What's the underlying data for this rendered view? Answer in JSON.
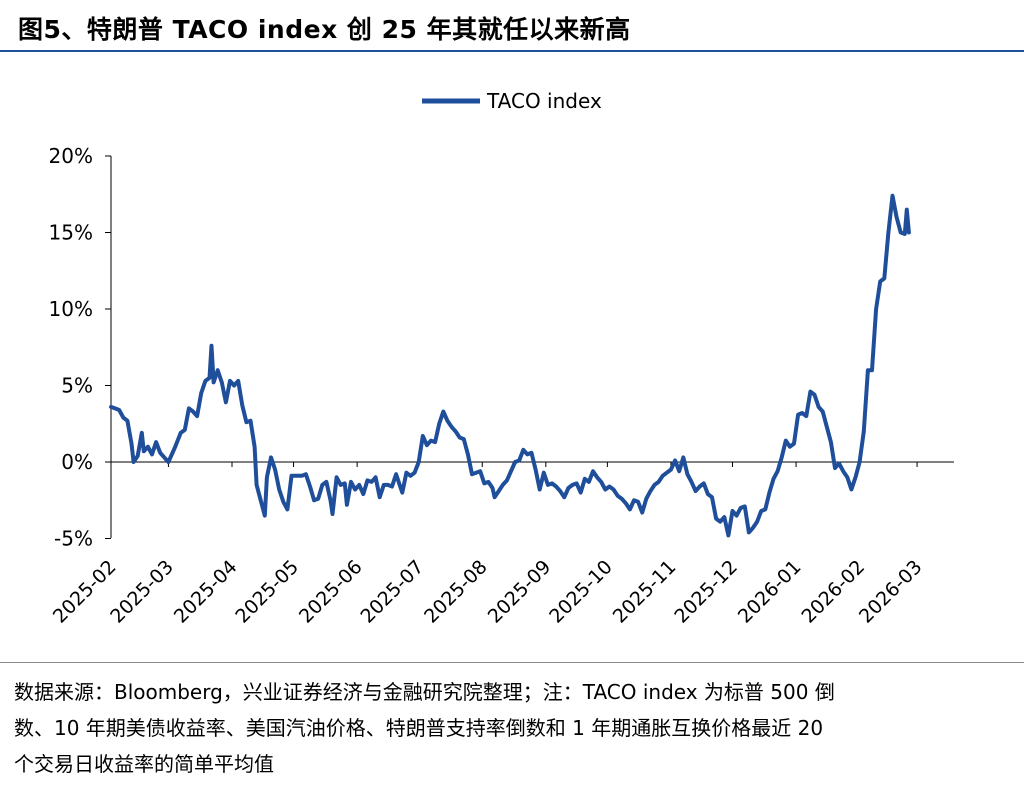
{
  "title": "图5、特朗普 TACO index 创 25 年其就任以来新高",
  "chart_data": {
    "type": "line",
    "series_name": "TACO index",
    "y_ticks": [
      "20%",
      "15%",
      "10%",
      "5%",
      "0%",
      "-5%"
    ],
    "ylim": [
      -5,
      20
    ],
    "x_tick_labels": [
      "2025-02",
      "2025-03",
      "2025-04",
      "2025-05",
      "2025-06",
      "2025-07",
      "2025-08",
      "2025-09",
      "2025-10",
      "2025-11",
      "2025-12",
      "2026-01",
      "2026-02",
      "2026-03"
    ],
    "x_tick_dates": [
      "2025-02-01",
      "2025-03-01",
      "2025-04-01",
      "2025-05-01",
      "2025-06-01",
      "2025-07-01",
      "2025-08-01",
      "2025-09-01",
      "2025-10-01",
      "2025-11-01",
      "2025-12-01",
      "2026-01-01",
      "2026-02-01",
      "2026-03-01"
    ],
    "x_start_date": "2025-02-01",
    "x_end_date": "2026-03-19",
    "grid": false,
    "legend_position": "top-center",
    "line_color": "#1f4e9a",
    "points": [
      [
        "2025-02-01",
        3.6
      ],
      [
        "2025-02-03",
        3.5
      ],
      [
        "2025-02-05",
        3.4
      ],
      [
        "2025-02-07",
        2.9
      ],
      [
        "2025-02-09",
        2.7
      ],
      [
        "2025-02-11",
        1.2
      ],
      [
        "2025-02-12",
        0.0
      ],
      [
        "2025-02-14",
        0.4
      ],
      [
        "2025-02-16",
        1.9
      ],
      [
        "2025-02-17",
        0.7
      ],
      [
        "2025-02-19",
        1.0
      ],
      [
        "2025-02-21",
        0.5
      ],
      [
        "2025-02-23",
        1.3
      ],
      [
        "2025-02-25",
        0.6
      ],
      [
        "2025-02-27",
        0.3
      ],
      [
        "2025-03-01",
        0.0
      ],
      [
        "2025-03-04",
        0.9
      ],
      [
        "2025-03-07",
        1.9
      ],
      [
        "2025-03-09",
        2.1
      ],
      [
        "2025-03-11",
        3.5
      ],
      [
        "2025-03-13",
        3.3
      ],
      [
        "2025-03-15",
        3.0
      ],
      [
        "2025-03-17",
        4.5
      ],
      [
        "2025-03-19",
        5.3
      ],
      [
        "2025-03-21",
        5.5
      ],
      [
        "2025-03-22",
        7.6
      ],
      [
        "2025-03-23",
        5.2
      ],
      [
        "2025-03-25",
        6.0
      ],
      [
        "2025-03-27",
        5.2
      ],
      [
        "2025-03-29",
        3.9
      ],
      [
        "2025-03-31",
        5.3
      ],
      [
        "2025-04-02",
        5.0
      ],
      [
        "2025-04-04",
        5.3
      ],
      [
        "2025-04-06",
        3.7
      ],
      [
        "2025-04-08",
        2.6
      ],
      [
        "2025-04-10",
        2.7
      ],
      [
        "2025-04-12",
        1.0
      ],
      [
        "2025-04-13",
        -1.5
      ],
      [
        "2025-04-15",
        -2.5
      ],
      [
        "2025-04-17",
        -3.5
      ],
      [
        "2025-04-18",
        -1.0
      ],
      [
        "2025-04-20",
        0.3
      ],
      [
        "2025-04-22",
        -0.5
      ],
      [
        "2025-04-24",
        -1.8
      ],
      [
        "2025-04-26",
        -2.6
      ],
      [
        "2025-04-28",
        -3.1
      ],
      [
        "2025-04-30",
        -0.9
      ],
      [
        "2025-05-02",
        -0.9
      ],
      [
        "2025-05-05",
        -0.9
      ],
      [
        "2025-05-07",
        -0.8
      ],
      [
        "2025-05-09",
        -1.6
      ],
      [
        "2025-05-11",
        -2.5
      ],
      [
        "2025-05-13",
        -2.4
      ],
      [
        "2025-05-15",
        -1.5
      ],
      [
        "2025-05-17",
        -1.3
      ],
      [
        "2025-05-19",
        -2.5
      ],
      [
        "2025-05-20",
        -3.4
      ],
      [
        "2025-05-22",
        -1.0
      ],
      [
        "2025-05-24",
        -1.5
      ],
      [
        "2025-05-26",
        -1.4
      ],
      [
        "2025-05-27",
        -2.8
      ],
      [
        "2025-05-29",
        -1.3
      ],
      [
        "2025-05-31",
        -1.8
      ],
      [
        "2025-06-02",
        -1.5
      ],
      [
        "2025-06-04",
        -2.1
      ],
      [
        "2025-06-06",
        -1.2
      ],
      [
        "2025-06-08",
        -1.3
      ],
      [
        "2025-06-10",
        -1.0
      ],
      [
        "2025-06-12",
        -2.3
      ],
      [
        "2025-06-14",
        -1.5
      ],
      [
        "2025-06-16",
        -1.5
      ],
      [
        "2025-06-18",
        -1.6
      ],
      [
        "2025-06-20",
        -0.8
      ],
      [
        "2025-06-22",
        -1.6
      ],
      [
        "2025-06-23",
        -2.0
      ],
      [
        "2025-06-25",
        -0.7
      ],
      [
        "2025-06-27",
        -0.9
      ],
      [
        "2025-06-29",
        -0.7
      ],
      [
        "2025-07-01",
        0.0
      ],
      [
        "2025-07-03",
        1.7
      ],
      [
        "2025-07-05",
        1.1
      ],
      [
        "2025-07-07",
        1.4
      ],
      [
        "2025-07-09",
        1.3
      ],
      [
        "2025-07-11",
        2.5
      ],
      [
        "2025-07-13",
        3.3
      ],
      [
        "2025-07-15",
        2.7
      ],
      [
        "2025-07-17",
        2.3
      ],
      [
        "2025-07-19",
        2.0
      ],
      [
        "2025-07-21",
        1.6
      ],
      [
        "2025-07-23",
        1.5
      ],
      [
        "2025-07-25",
        0.5
      ],
      [
        "2025-07-27",
        -0.8
      ],
      [
        "2025-07-29",
        -0.7
      ],
      [
        "2025-07-31",
        -0.6
      ],
      [
        "2025-08-02",
        -1.4
      ],
      [
        "2025-08-04",
        -1.3
      ],
      [
        "2025-08-06",
        -1.7
      ],
      [
        "2025-08-07",
        -2.3
      ],
      [
        "2025-08-09",
        -1.9
      ],
      [
        "2025-08-11",
        -1.5
      ],
      [
        "2025-08-13",
        -1.2
      ],
      [
        "2025-08-15",
        -0.6
      ],
      [
        "2025-08-17",
        0.0
      ],
      [
        "2025-08-19",
        0.1
      ],
      [
        "2025-08-21",
        0.8
      ],
      [
        "2025-08-23",
        0.5
      ],
      [
        "2025-08-25",
        0.6
      ],
      [
        "2025-08-27",
        -0.5
      ],
      [
        "2025-08-29",
        -1.8
      ],
      [
        "2025-08-31",
        -0.7
      ],
      [
        "2025-09-02",
        -1.5
      ],
      [
        "2025-09-04",
        -1.4
      ],
      [
        "2025-09-06",
        -1.6
      ],
      [
        "2025-09-08",
        -1.9
      ],
      [
        "2025-09-10",
        -2.3
      ],
      [
        "2025-09-12",
        -1.7
      ],
      [
        "2025-09-14",
        -1.5
      ],
      [
        "2025-09-16",
        -1.4
      ],
      [
        "2025-09-18",
        -2.0
      ],
      [
        "2025-09-20",
        -1.1
      ],
      [
        "2025-09-22",
        -1.3
      ],
      [
        "2025-09-24",
        -0.6
      ],
      [
        "2025-09-26",
        -1.0
      ],
      [
        "2025-09-28",
        -1.3
      ],
      [
        "2025-09-30",
        -1.8
      ],
      [
        "2025-10-02",
        -1.6
      ],
      [
        "2025-10-04",
        -1.8
      ],
      [
        "2025-10-06",
        -2.2
      ],
      [
        "2025-10-08",
        -2.4
      ],
      [
        "2025-10-10",
        -2.7
      ],
      [
        "2025-10-12",
        -3.1
      ],
      [
        "2025-10-14",
        -2.5
      ],
      [
        "2025-10-16",
        -2.6
      ],
      [
        "2025-10-18",
        -3.3
      ],
      [
        "2025-10-20",
        -2.4
      ],
      [
        "2025-10-22",
        -1.9
      ],
      [
        "2025-10-24",
        -1.5
      ],
      [
        "2025-10-26",
        -1.3
      ],
      [
        "2025-10-28",
        -0.9
      ],
      [
        "2025-10-30",
        -0.7
      ],
      [
        "2025-11-01",
        -0.5
      ],
      [
        "2025-11-03",
        0.1
      ],
      [
        "2025-11-05",
        -0.6
      ],
      [
        "2025-11-07",
        0.3
      ],
      [
        "2025-11-09",
        -0.8
      ],
      [
        "2025-11-11",
        -1.3
      ],
      [
        "2025-11-13",
        -1.9
      ],
      [
        "2025-11-15",
        -1.6
      ],
      [
        "2025-11-17",
        -1.4
      ],
      [
        "2025-11-19",
        -2.1
      ],
      [
        "2025-11-21",
        -2.3
      ],
      [
        "2025-11-23",
        -3.7
      ],
      [
        "2025-11-25",
        -3.9
      ],
      [
        "2025-11-27",
        -3.6
      ],
      [
        "2025-11-29",
        -4.8
      ],
      [
        "2025-12-01",
        -3.2
      ],
      [
        "2025-12-03",
        -3.5
      ],
      [
        "2025-12-05",
        -3.0
      ],
      [
        "2025-12-07",
        -2.9
      ],
      [
        "2025-12-09",
        -4.6
      ],
      [
        "2025-12-11",
        -4.3
      ],
      [
        "2025-12-13",
        -3.9
      ],
      [
        "2025-12-15",
        -3.2
      ],
      [
        "2025-12-17",
        -3.1
      ],
      [
        "2025-12-19",
        -2.0
      ],
      [
        "2025-12-21",
        -1.1
      ],
      [
        "2025-12-23",
        -0.6
      ],
      [
        "2025-12-25",
        0.3
      ],
      [
        "2025-12-27",
        1.4
      ],
      [
        "2025-12-29",
        1.0
      ],
      [
        "2025-12-31",
        1.2
      ],
      [
        "2026-01-02",
        3.1
      ],
      [
        "2026-01-04",
        3.2
      ],
      [
        "2026-01-06",
        3.0
      ],
      [
        "2026-01-08",
        4.6
      ],
      [
        "2026-01-10",
        4.4
      ],
      [
        "2026-01-12",
        3.6
      ],
      [
        "2026-01-14",
        3.3
      ],
      [
        "2026-01-16",
        2.3
      ],
      [
        "2026-01-18",
        1.3
      ],
      [
        "2026-01-20",
        -0.4
      ],
      [
        "2026-01-22",
        -0.1
      ],
      [
        "2026-01-24",
        -0.6
      ],
      [
        "2026-01-26",
        -1.0
      ],
      [
        "2026-01-28",
        -1.8
      ],
      [
        "2026-01-30",
        -1.0
      ],
      [
        "2026-02-01",
        0.0
      ],
      [
        "2026-02-03",
        2.0
      ],
      [
        "2026-02-05",
        6.0
      ],
      [
        "2026-02-07",
        6.0
      ],
      [
        "2026-02-09",
        10.0
      ],
      [
        "2026-02-11",
        11.8
      ],
      [
        "2026-02-13",
        12.0
      ],
      [
        "2026-02-15",
        15.0
      ],
      [
        "2026-02-17",
        17.4
      ],
      [
        "2026-02-19",
        16.0
      ],
      [
        "2026-02-21",
        15.0
      ],
      [
        "2026-02-23",
        14.9
      ],
      [
        "2026-02-24",
        16.5
      ],
      [
        "2026-02-25",
        15.0
      ]
    ]
  },
  "footer": {
    "line1": "数据来源：Bloomberg，兴业证券经济与金融研究院整理；注：TACO index 为标普 500 倒",
    "line2": "数、10 年期美债收益率、美国汽油价格、特朗普支持率倒数和 1 年期通胀互换价格最近 20",
    "line3": "个交易日收益率的简单平均值"
  }
}
